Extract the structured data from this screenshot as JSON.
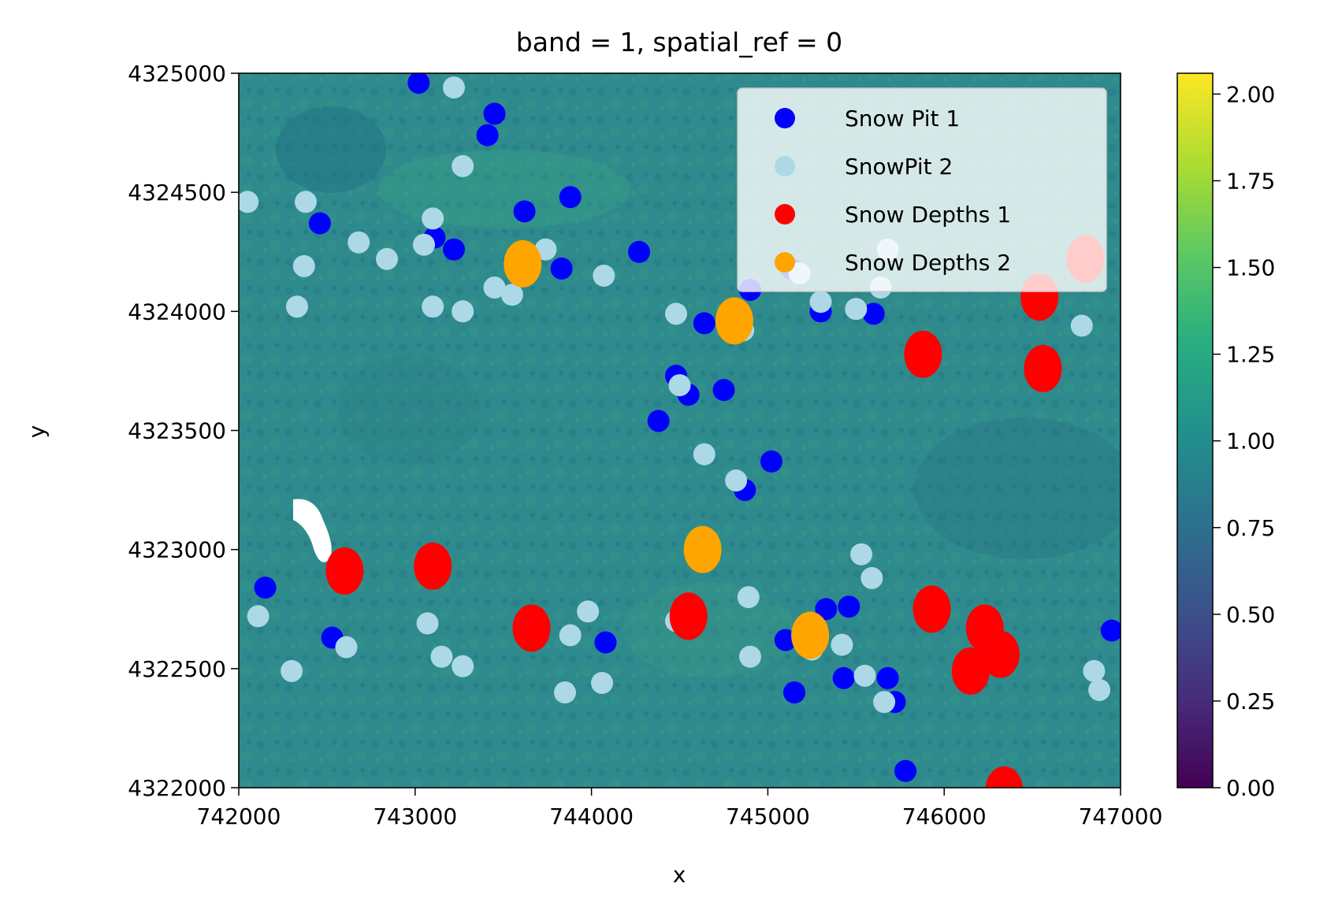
{
  "chart_data": {
    "type": "scatter",
    "title": "band = 1, spatial_ref = 0",
    "xlabel": "x",
    "ylabel": "y",
    "xlim": [
      742000,
      747000
    ],
    "ylim": [
      4322000,
      4325000
    ],
    "x_ticks": [
      "742000",
      "743000",
      "744000",
      "745000",
      "746000",
      "747000"
    ],
    "y_ticks": [
      "4322000",
      "4322500",
      "4323000",
      "4323500",
      "4324000",
      "4324500",
      "4325000"
    ],
    "x_tick_values": [
      742000,
      743000,
      744000,
      745000,
      746000,
      747000
    ],
    "y_tick_values": [
      4322000,
      4322500,
      4323000,
      4323500,
      4324000,
      4324500,
      4325000
    ],
    "background": "raster image, viridis colormap",
    "legend_position": "top-right",
    "colorbar": {
      "colormap": "viridis",
      "range": [
        0,
        2.06
      ],
      "ticks": [
        "0.00",
        "0.25",
        "0.50",
        "0.75",
        "1.00",
        "1.25",
        "1.50",
        "1.75",
        "2.00"
      ],
      "tick_values": [
        0,
        0.25,
        0.5,
        0.75,
        1.0,
        1.25,
        1.5,
        1.75,
        2.0
      ]
    },
    "series": [
      {
        "name": "Snow Pit 1",
        "color": "#0000ff",
        "points": [
          [
            743020,
            4324960
          ],
          [
            743450,
            4324830
          ],
          [
            743410,
            4324740
          ],
          [
            743880,
            4324480
          ],
          [
            742460,
            4324370
          ],
          [
            743620,
            4324420
          ],
          [
            743110,
            4324310
          ],
          [
            743220,
            4324260
          ],
          [
            744270,
            4324250
          ],
          [
            743830,
            4324180
          ],
          [
            745130,
            4324180
          ],
          [
            744900,
            4324090
          ],
          [
            744640,
            4323950
          ],
          [
            745300,
            4324000
          ],
          [
            745600,
            4323990
          ],
          [
            744480,
            4323730
          ],
          [
            744550,
            4323650
          ],
          [
            744750,
            4323670
          ],
          [
            744380,
            4323540
          ],
          [
            745020,
            4323370
          ],
          [
            744870,
            4323250
          ],
          [
            742150,
            4322840
          ],
          [
            742530,
            4322630
          ],
          [
            744080,
            4322610
          ],
          [
            745100,
            4322620
          ],
          [
            745330,
            4322750
          ],
          [
            745460,
            4322760
          ],
          [
            745430,
            4322460
          ],
          [
            745680,
            4322460
          ],
          [
            745150,
            4322400
          ],
          [
            745720,
            4322360
          ],
          [
            745780,
            4322070
          ],
          [
            746950,
            4322660
          ]
        ]
      },
      {
        "name": "SnowPit 2",
        "color": "#add8e6",
        "points": [
          [
            743220,
            4324940
          ],
          [
            743270,
            4324610
          ],
          [
            742050,
            4324460
          ],
          [
            742380,
            4324460
          ],
          [
            743100,
            4324390
          ],
          [
            742680,
            4324290
          ],
          [
            742840,
            4324220
          ],
          [
            743050,
            4324280
          ],
          [
            742370,
            4324190
          ],
          [
            743740,
            4324260
          ],
          [
            744070,
            4324150
          ],
          [
            743450,
            4324100
          ],
          [
            743550,
            4324070
          ],
          [
            742330,
            4324020
          ],
          [
            743100,
            4324020
          ],
          [
            743270,
            4324000
          ],
          [
            744480,
            4323990
          ],
          [
            745300,
            4324040
          ],
          [
            745500,
            4324010
          ],
          [
            745640,
            4324100
          ],
          [
            744860,
            4323920
          ],
          [
            746780,
            4323940
          ],
          [
            744500,
            4323690
          ],
          [
            744640,
            4323400
          ],
          [
            744820,
            4323290
          ],
          [
            745530,
            4322980
          ],
          [
            745590,
            4322880
          ],
          [
            744890,
            4322800
          ],
          [
            742110,
            4322720
          ],
          [
            743070,
            4322690
          ],
          [
            743980,
            4322740
          ],
          [
            743880,
            4322640
          ],
          [
            744480,
            4322700
          ],
          [
            745250,
            4322580
          ],
          [
            745420,
            4322600
          ],
          [
            742610,
            4322590
          ],
          [
            743150,
            4322550
          ],
          [
            743270,
            4322510
          ],
          [
            742300,
            4322490
          ],
          [
            744900,
            4322550
          ],
          [
            745550,
            4322470
          ],
          [
            743850,
            4322400
          ],
          [
            744060,
            4322440
          ],
          [
            745660,
            4322360
          ],
          [
            746850,
            4322490
          ],
          [
            746880,
            4322410
          ],
          [
            745680,
            4324260
          ],
          [
            745180,
            4324160
          ]
        ]
      },
      {
        "name": "Snow Depths 1",
        "color": "#ff0000",
        "points": [
          [
            746800,
            4324220
          ],
          [
            746540,
            4324060
          ],
          [
            746560,
            4323760
          ],
          [
            745880,
            4323820
          ],
          [
            742600,
            4322910
          ],
          [
            743100,
            4322930
          ],
          [
            743660,
            4322670
          ],
          [
            744550,
            4322720
          ],
          [
            745930,
            4322750
          ],
          [
            746230,
            4322670
          ],
          [
            746320,
            4322560
          ],
          [
            746150,
            4322490
          ],
          [
            746340,
            4321990
          ]
        ]
      },
      {
        "name": "Snow Depths 2",
        "color": "#ffa500",
        "points": [
          [
            743610,
            4324200
          ],
          [
            744810,
            4323960
          ],
          [
            744630,
            4323000
          ],
          [
            745240,
            4322640
          ]
        ]
      }
    ]
  }
}
